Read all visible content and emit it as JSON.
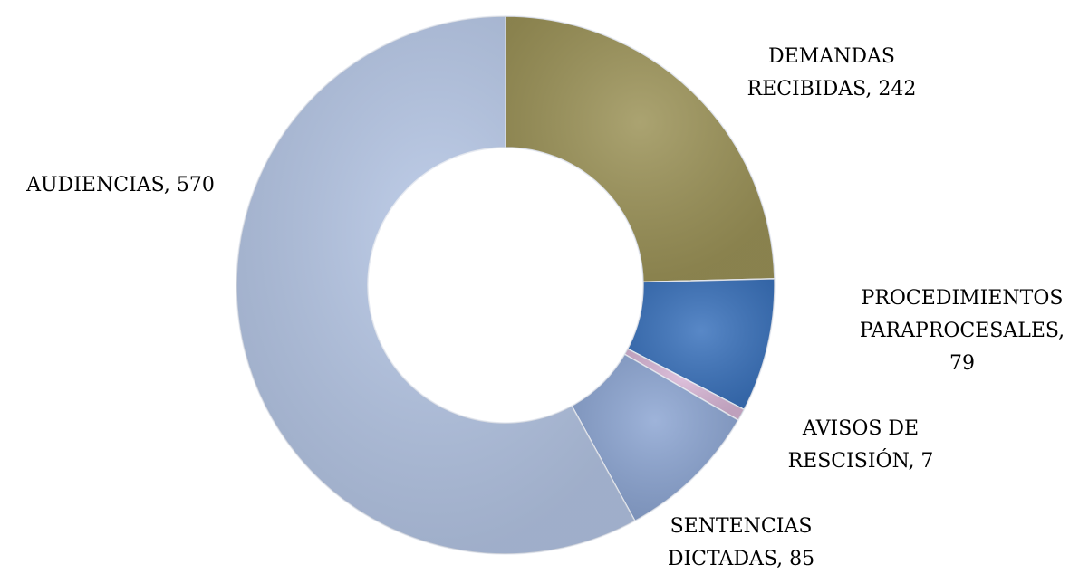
{
  "chart_data": {
    "type": "donut",
    "values": [
      242,
      79,
      7,
      85,
      570
    ],
    "value_labels": [
      [
        "DEMANDAS",
        "RECIBIDAS, 242"
      ],
      [
        "PROCEDIMIENTOS",
        "PARAPROCESALES,",
        "79"
      ],
      [
        "AVISOS DE",
        "RESCISIÓN, 7"
      ],
      [
        "SENTENCIAS",
        "DICTADAS, 85"
      ],
      [
        "AUDIENCIAS, 570"
      ]
    ],
    "colors": [
      "#9c9358",
      "#3b73bd",
      "#d8b6d6",
      "#8da6d3",
      "#b5c6e5"
    ]
  }
}
